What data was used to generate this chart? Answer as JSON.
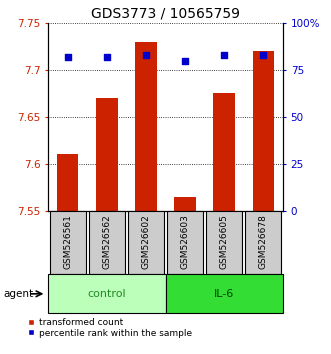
{
  "title": "GDS3773 / 10565759",
  "samples": [
    "GSM526561",
    "GSM526562",
    "GSM526602",
    "GSM526603",
    "GSM526605",
    "GSM526678"
  ],
  "groups": [
    "control",
    "control",
    "control",
    "IL-6",
    "IL-6",
    "IL-6"
  ],
  "transformed_counts": [
    7.61,
    7.67,
    7.73,
    7.565,
    7.675,
    7.72
  ],
  "percentile_ranks": [
    82,
    82,
    83,
    80,
    83,
    83
  ],
  "ylim_left": [
    7.55,
    7.75
  ],
  "ylim_right": [
    0,
    100
  ],
  "yticks_left": [
    7.55,
    7.6,
    7.65,
    7.7,
    7.75
  ],
  "yticks_right": [
    0,
    25,
    50,
    75,
    100
  ],
  "ytick_labels_right": [
    "0",
    "25",
    "50",
    "75",
    "100%"
  ],
  "bar_color": "#cc2200",
  "dot_color": "#0000cc",
  "bar_bottom": 7.55,
  "control_color": "#bbffbb",
  "il6_color": "#33dd33",
  "sample_box_color": "#cccccc",
  "legend_bar_label": "transformed count",
  "legend_dot_label": "percentile rank within the sample",
  "title_fontsize": 10,
  "tick_fontsize": 7.5,
  "sample_fontsize": 6.5,
  "group_fontsize": 8
}
